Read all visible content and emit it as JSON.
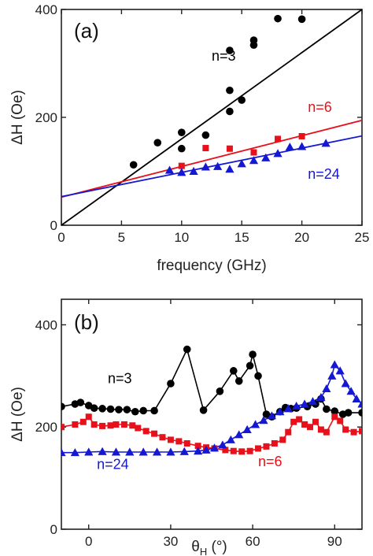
{
  "colors": {
    "n3": "#000000",
    "n6": "#e8101a",
    "n24": "#1418d2",
    "axes": "#222222"
  },
  "chart_data": [
    {
      "type": "scatter",
      "panel_label": "(a)",
      "xlabel": "frequency (GHz)",
      "ylabel": "ΔH (Oe)",
      "xlim": [
        0,
        25
      ],
      "ylim": [
        0,
        400
      ],
      "xticks": [
        0,
        5,
        10,
        15,
        20,
        25
      ],
      "yticks": [
        0,
        200,
        400
      ],
      "series": [
        {
          "name": "n=3",
          "color": "#000000",
          "marker": "circle",
          "points": [
            [
              6,
              112
            ],
            [
              8,
              153
            ],
            [
              10,
              172
            ],
            [
              10,
              142
            ],
            [
              12,
              167
            ],
            [
              14,
              324
            ],
            [
              14,
              250
            ],
            [
              14,
              211
            ],
            [
              15,
              232
            ],
            [
              16,
              343
            ],
            [
              16,
              334
            ],
            [
              18,
              383
            ],
            [
              20,
              382
            ]
          ],
          "fit": {
            "slope": 16,
            "intercept": 0
          }
        },
        {
          "name": "n=6",
          "color": "#e8101a",
          "marker": "square",
          "points": [
            [
              10,
              110
            ],
            [
              12,
              143
            ],
            [
              14,
              142
            ],
            [
              16,
              135
            ],
            [
              18,
              160
            ],
            [
              20,
              165
            ]
          ],
          "fit": {
            "slope": 5.7,
            "intercept": 52
          }
        },
        {
          "name": "n=24",
          "color": "#1418d2",
          "marker": "triangle",
          "points": [
            [
              9,
              102
            ],
            [
              10,
              98
            ],
            [
              11,
              100
            ],
            [
              12,
              108
            ],
            [
              13,
              109
            ],
            [
              14,
              104
            ],
            [
              15,
              114
            ],
            [
              16,
              120
            ],
            [
              17,
              125
            ],
            [
              18,
              133
            ],
            [
              19,
              145
            ],
            [
              20,
              146
            ],
            [
              22,
              152
            ]
          ],
          "fit": {
            "slope": 4.5,
            "intercept": 53
          }
        }
      ],
      "annotations": [
        {
          "text": "n=3",
          "series": "n=3",
          "x": 12.5,
          "y": 305
        },
        {
          "text": "n=6",
          "series": "n=6",
          "x": 20.5,
          "y": 210
        },
        {
          "text": "n=24",
          "series": "n=24",
          "x": 20.5,
          "y": 86
        }
      ]
    },
    {
      "type": "line",
      "panel_label": "(b)",
      "xlabel": "θH (°)",
      "ylabel": "ΔH (Oe)",
      "xlim": [
        -10,
        100
      ],
      "ylim": [
        0,
        450
      ],
      "xticks": [
        0,
        30,
        60,
        90
      ],
      "yticks": [
        0,
        200,
        400
      ],
      "series": [
        {
          "name": "n=3",
          "color": "#000000",
          "marker": "circle",
          "points": [
            [
              -10,
              240
            ],
            [
              -5,
              245
            ],
            [
              -3,
              248
            ],
            [
              0,
              242
            ],
            [
              2,
              237
            ],
            [
              5,
              236
            ],
            [
              8,
              235
            ],
            [
              11,
              234
            ],
            [
              14,
              234
            ],
            [
              17,
              230
            ],
            [
              20,
              232
            ],
            [
              24,
              232
            ],
            [
              30,
              285
            ],
            [
              36,
              352
            ],
            [
              42,
              233
            ],
            [
              48,
              270
            ],
            [
              53,
              310
            ],
            [
              55,
              290
            ],
            [
              59,
              320
            ],
            [
              60,
              342
            ],
            [
              62,
              300
            ],
            [
              65,
              225
            ],
            [
              67,
              220
            ],
            [
              70,
              230
            ],
            [
              72,
              238
            ],
            [
              74,
              236
            ],
            [
              76,
              237
            ],
            [
              80,
              240
            ],
            [
              83,
              245
            ],
            [
              85,
              255
            ],
            [
              87,
              235
            ],
            [
              90,
              231
            ],
            [
              93,
              225
            ],
            [
              95,
              228
            ],
            [
              100,
              228
            ]
          ]
        },
        {
          "name": "n=6",
          "color": "#e8101a",
          "marker": "square",
          "points": [
            [
              -10,
              200
            ],
            [
              -5,
              205
            ],
            [
              -2,
              210
            ],
            [
              0,
              220
            ],
            [
              2,
              205
            ],
            [
              5,
              202
            ],
            [
              8,
              203
            ],
            [
              10,
              205
            ],
            [
              13,
              205
            ],
            [
              16,
              203
            ],
            [
              18,
              198
            ],
            [
              21,
              192
            ],
            [
              24,
              187
            ],
            [
              27,
              180
            ],
            [
              30,
              175
            ],
            [
              33,
              172
            ],
            [
              36,
              168
            ],
            [
              40,
              163
            ],
            [
              43,
              160
            ],
            [
              46,
              158
            ],
            [
              50,
              155
            ],
            [
              53,
              153
            ],
            [
              56,
              152
            ],
            [
              59,
              153
            ],
            [
              62,
              158
            ],
            [
              65,
              162
            ],
            [
              68,
              168
            ],
            [
              71,
              175
            ],
            [
              73,
              190
            ],
            [
              75,
              210
            ],
            [
              77,
              215
            ],
            [
              79,
              205
            ],
            [
              81,
              200
            ],
            [
              83,
              210
            ],
            [
              85,
              195
            ],
            [
              87,
              190
            ],
            [
              90,
              220
            ],
            [
              92,
              212
            ],
            [
              94,
              195
            ],
            [
              97,
              190
            ],
            [
              100,
              192
            ]
          ]
        },
        {
          "name": "n=24",
          "color": "#1418d2",
          "marker": "triangle",
          "points": [
            [
              -10,
              150
            ],
            [
              -5,
              150
            ],
            [
              0,
              151
            ],
            [
              5,
              152
            ],
            [
              10,
              151
            ],
            [
              15,
              151
            ],
            [
              20,
              151
            ],
            [
              25,
              151
            ],
            [
              30,
              151
            ],
            [
              35,
              152
            ],
            [
              40,
              153
            ],
            [
              43,
              155
            ],
            [
              46,
              159
            ],
            [
              49,
              165
            ],
            [
              52,
              175
            ],
            [
              55,
              185
            ],
            [
              58,
              195
            ],
            [
              61,
              205
            ],
            [
              64,
              213
            ],
            [
              67,
              222
            ],
            [
              70,
              230
            ],
            [
              73,
              236
            ],
            [
              76,
              241
            ],
            [
              79,
              245
            ],
            [
              82,
              250
            ],
            [
              85,
              258
            ],
            [
              87,
              275
            ],
            [
              89,
              300
            ],
            [
              90,
              322
            ],
            [
              92,
              310
            ],
            [
              94,
              285
            ],
            [
              96,
              270
            ],
            [
              98,
              255
            ],
            [
              100,
              245
            ]
          ]
        }
      ],
      "annotations": [
        {
          "text": "n=3",
          "series": "n=3",
          "x": 7,
          "y": 286
        },
        {
          "text": "n=6",
          "series": "n=6",
          "x": 62,
          "y": 123
        },
        {
          "text": "n=24",
          "series": "n=24",
          "x": 3,
          "y": 118
        }
      ]
    }
  ]
}
